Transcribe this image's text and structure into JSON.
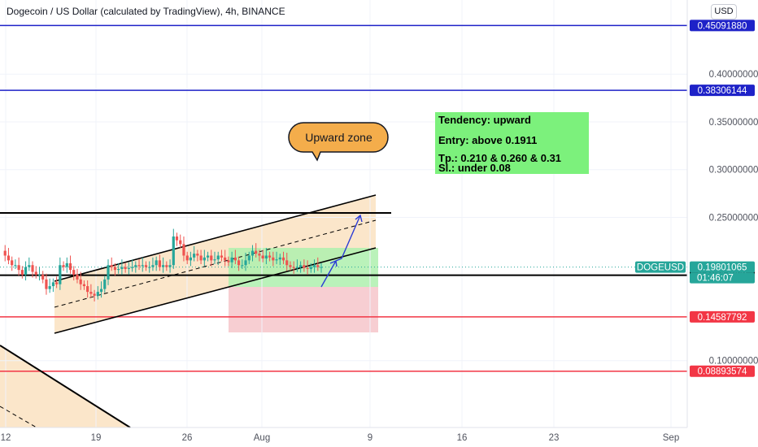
{
  "header": {
    "title": "Dogecoin / US Dollar (calculated by TradingView), 4h, BINANCE",
    "currency_button": "USD"
  },
  "chart_data": {
    "type": "candlestick",
    "symbol": "DOGEUSD",
    "interval": "4h",
    "exchange": "BINANCE",
    "ylim": [
      0.065,
      0.475
    ],
    "y_ticks": [
      "0.40000000",
      "0.35000000",
      "0.30000000",
      "0.25000000",
      "0.10000000"
    ],
    "y_tick_values": [
      0.4,
      0.35,
      0.3,
      0.25,
      0.1
    ],
    "x_ticks": [
      "12",
      "19",
      "26",
      "Aug",
      "9",
      "16",
      "23",
      "Sep"
    ],
    "horizontal_levels": [
      {
        "value": 0.4509188,
        "label": "0.45091880",
        "color": "#1e22c8"
      },
      {
        "value": 0.38306144,
        "label": "0.38306144",
        "color": "#1e22c8"
      },
      {
        "value": 0.19114868,
        "label": "0.19114868",
        "color": "#000000"
      },
      {
        "value": 0.14587792,
        "label": "0.14587792",
        "color": "#f23645"
      },
      {
        "value": 0.08893574,
        "label": "0.08893574",
        "color": "#f23645"
      }
    ],
    "last_price": {
      "symbol": "DOGEUSD",
      "value": 0.19801065,
      "label": "0.19801065",
      "countdown": "01:46:07",
      "color": "#26a69a"
    },
    "price_path": [
      0.215,
      0.21,
      0.205,
      0.2,
      0.2,
      0.195,
      0.19,
      0.198,
      0.2,
      0.193,
      0.19,
      0.19,
      0.185,
      0.175,
      0.178,
      0.182,
      0.18,
      0.2,
      0.198,
      0.202,
      0.195,
      0.19,
      0.185,
      0.18,
      0.178,
      0.172,
      0.17,
      0.168,
      0.172,
      0.175,
      0.185,
      0.2,
      0.198,
      0.195,
      0.196,
      0.198,
      0.196,
      0.197,
      0.198,
      0.2,
      0.199,
      0.2,
      0.198,
      0.198,
      0.2,
      0.205,
      0.198,
      0.2,
      0.198,
      0.2,
      0.23,
      0.226,
      0.222,
      0.21,
      0.205,
      0.208,
      0.212,
      0.21,
      0.205,
      0.208,
      0.21,
      0.205,
      0.206,
      0.21,
      0.208,
      0.205,
      0.203,
      0.208,
      0.205,
      0.2,
      0.2,
      0.205,
      0.21,
      0.215,
      0.212,
      0.21,
      0.207,
      0.21,
      0.208,
      0.205,
      0.206,
      0.208,
      0.205,
      0.2,
      0.198,
      0.197,
      0.198,
      0.2,
      0.197,
      0.196,
      0.198,
      0.2,
      0.198,
      0.198
    ]
  },
  "annotations": {
    "callout": "Upward zone",
    "note_lines": [
      "Tendency: upward",
      "Entry: above 0.1911",
      "Tp.:  0.210 & 0.260 & 0.31",
      "Sl.: under 0.08"
    ]
  },
  "colors": {
    "up_candle": "#26a69a",
    "down_candle": "#ef5350",
    "channel_fill": "#fbe3c4",
    "profit_zone": "#aef0ae",
    "loss_zone": "#f6c9cd",
    "callout_fill": "#f4ad4b",
    "note_fill": "#7cf17c"
  }
}
